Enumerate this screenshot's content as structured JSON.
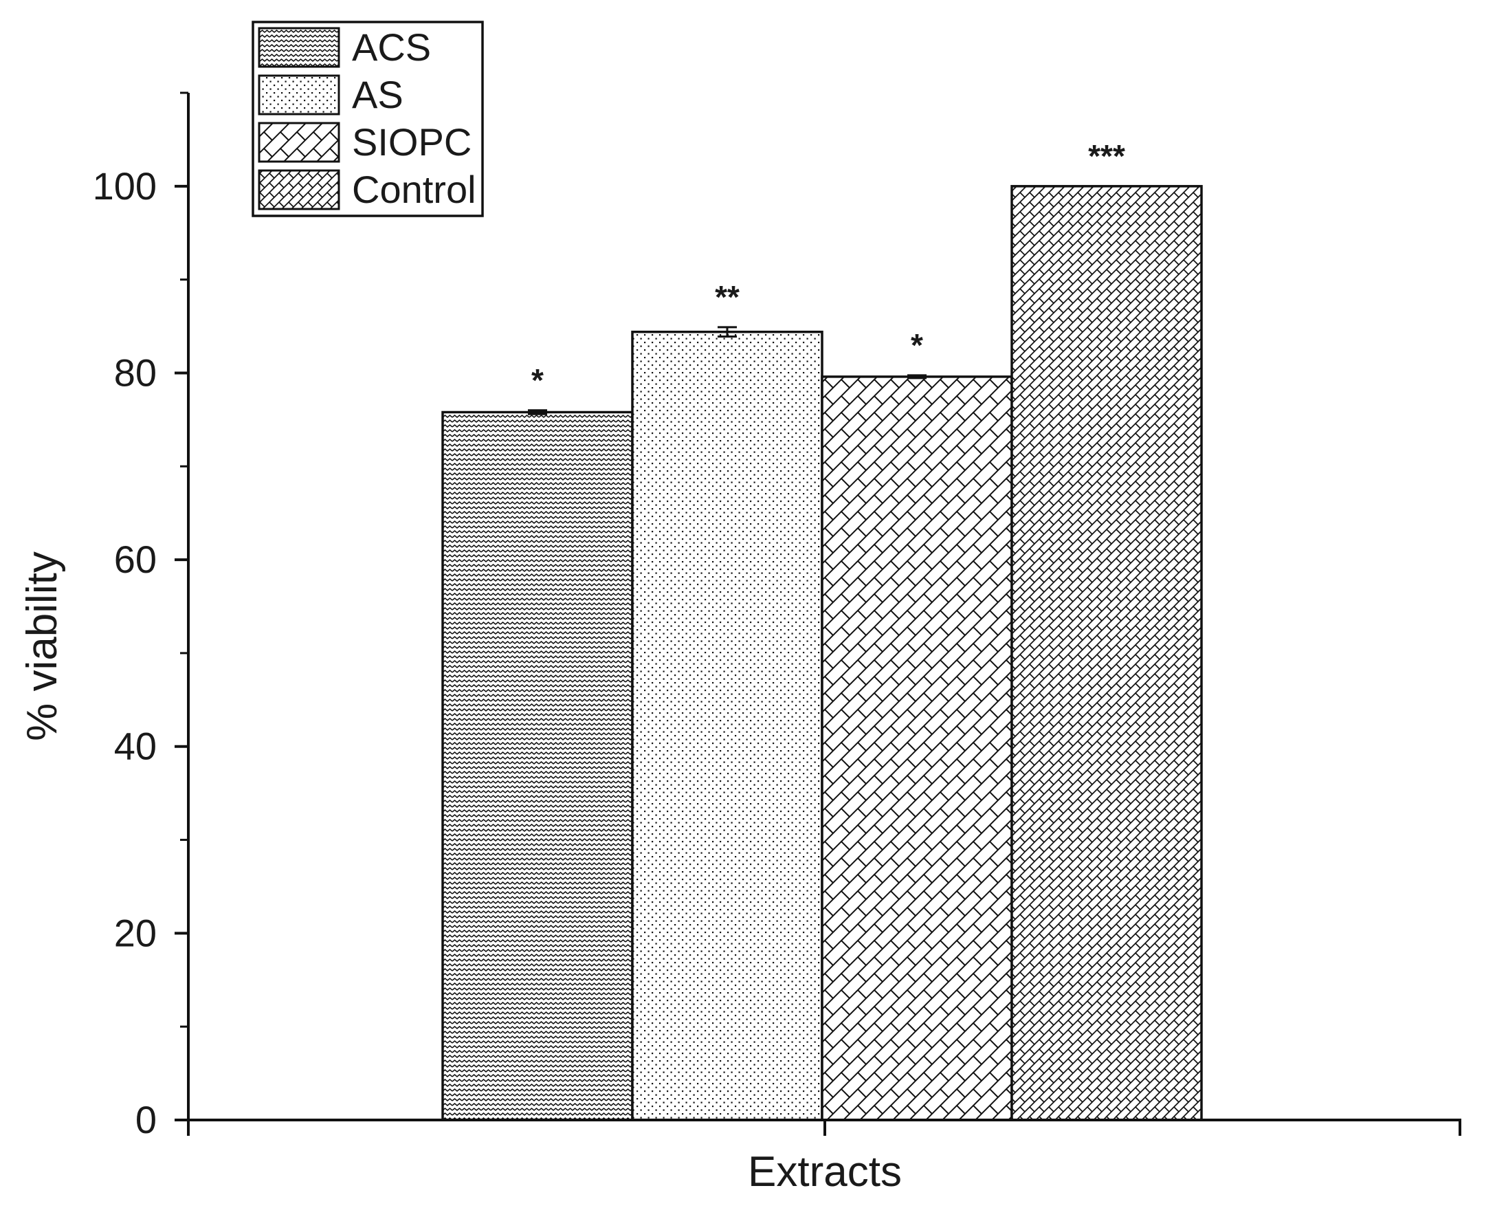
{
  "chart_data": {
    "type": "bar",
    "xlabel": "Extracts",
    "ylabel": "% viability",
    "ylim": [
      0,
      110
    ],
    "yticks": [
      0,
      20,
      40,
      60,
      80,
      100
    ],
    "grid": false,
    "legend_position": "top-left",
    "categories": [
      "Extracts"
    ],
    "series": [
      {
        "name": "ACS",
        "values": [
          75.8
        ],
        "error": [
          0.2
        ],
        "significance": "*",
        "pattern": "wave"
      },
      {
        "name": "AS",
        "values": [
          84.4
        ],
        "error": [
          0.5
        ],
        "significance": "**",
        "pattern": "dots"
      },
      {
        "name": "SIOPC",
        "values": [
          79.6
        ],
        "error": [
          0.15
        ],
        "significance": "*",
        "pattern": "diagonal"
      },
      {
        "name": "Control",
        "values": [
          100
        ],
        "error": [
          0
        ],
        "significance": "***",
        "pattern": "crosshatch"
      }
    ]
  }
}
